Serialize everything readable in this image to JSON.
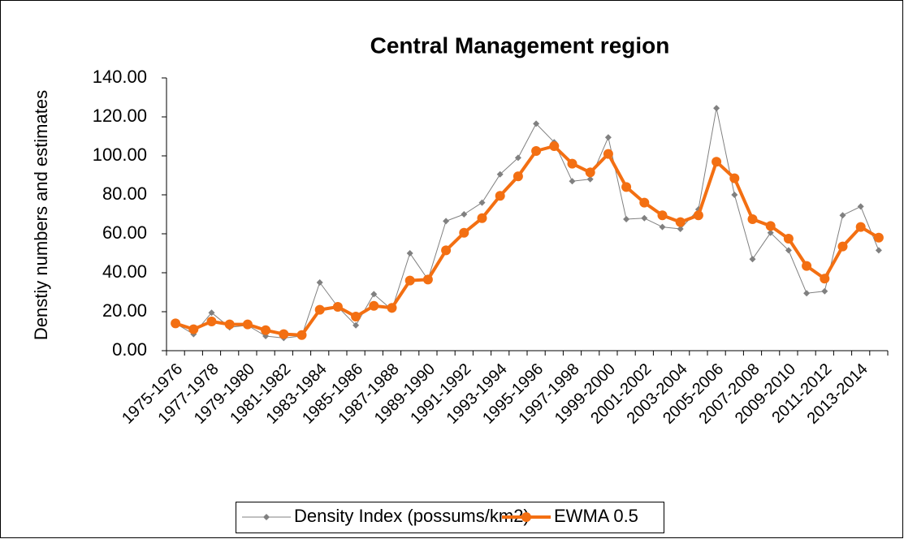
{
  "chart_data": {
    "type": "line",
    "title": "Central Management region",
    "y_label": "Denstiy numbers and estimates",
    "categories": [
      "1975-1976",
      null,
      "1977-1978",
      null,
      "1979-1980",
      null,
      "1981-1982",
      null,
      "1983-1984",
      null,
      "1985-1986",
      null,
      "1987-1988",
      null,
      "1989-1990",
      null,
      "1991-1992",
      null,
      "1993-1994",
      null,
      "1995-1996",
      null,
      "1997-1998",
      null,
      "1999-2000",
      null,
      "2001-2002",
      null,
      "2003-2004",
      null,
      "2005-2006",
      null,
      "2007-2008",
      null,
      "2009-2010",
      null,
      "2011-2012",
      null,
      "2013-2014",
      null
    ],
    "series": [
      {
        "name": "Density Index (possums/km2)",
        "color": "#808080",
        "marker": "diamond",
        "values": [
          14,
          8.5,
          19.5,
          12,
          13,
          7.5,
          6.5,
          7.5,
          35,
          22.5,
          13,
          29,
          21,
          50,
          36.5,
          66.5,
          70,
          76,
          90.5,
          99,
          116.5,
          107,
          87,
          88,
          109.5,
          67.5,
          68,
          63.5,
          62.5,
          72.5,
          124.5,
          80,
          47,
          60.5,
          51.5,
          29.5,
          30.5,
          69.5,
          74,
          51.5
        ]
      },
      {
        "name": "EWMA 0.5",
        "color": "#f36f12",
        "marker": "circle",
        "values": [
          14,
          11,
          15,
          13.5,
          13.5,
          10.5,
          8.5,
          8,
          21,
          22.5,
          17.5,
          23,
          22,
          36,
          36.5,
          51.5,
          60.5,
          68,
          79.5,
          89.5,
          102.5,
          105,
          96,
          91.5,
          101,
          84,
          76,
          69.5,
          66,
          69.5,
          97,
          88.5,
          67.5,
          64,
          57.5,
          43.5,
          37,
          53.5,
          63.5,
          58
        ]
      }
    ],
    "ylim": [
      0,
      140
    ],
    "yticks": [
      {
        "value": 0,
        "label": "0.00"
      },
      {
        "value": 20,
        "label": "20.00"
      },
      {
        "value": 40,
        "label": "40.00"
      },
      {
        "value": 60,
        "label": "60.00"
      },
      {
        "value": 80,
        "label": "80.00"
      },
      {
        "value": 100,
        "label": "100.00"
      },
      {
        "value": 120,
        "label": "120.00"
      },
      {
        "value": 140,
        "label": "140.00"
      }
    ],
    "legend": "bottom"
  }
}
